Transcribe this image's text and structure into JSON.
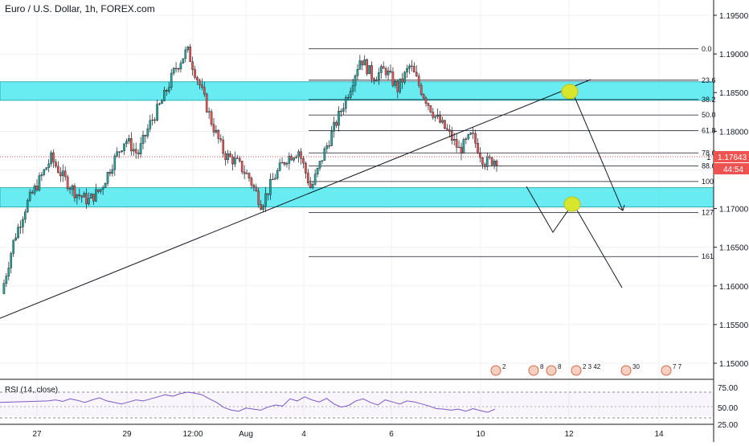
{
  "header": {
    "title": "Euro / U.S. Dollar, 1h, FOREX.com"
  },
  "price_badge": {
    "price": "1.17643",
    "countdown": "44:54",
    "left_glyph": "1"
  },
  "colors": {
    "bull": "#26a69a",
    "bear": "#ef5350",
    "zone": "#4ee9f0",
    "rsi": "#7e57c2",
    "circle": "#d7e62d",
    "grid": "#e0e3eb",
    "badge": "#ef5350"
  },
  "rsi": {
    "title": "RSI (14, close)",
    "levels": [
      "75.00",
      "50.00",
      "25.00"
    ]
  },
  "x_axis": {
    "labels": [
      "27",
      "29",
      "12:00",
      "Aug",
      "4",
      "6",
      "10",
      "12",
      "14"
    ]
  },
  "events": [
    "2",
    "8",
    "8",
    "2 3 42",
    "30",
    "7 7"
  ],
  "chart_data": {
    "type": "candlestick",
    "symbol": "EURUSD",
    "interval": "1h",
    "ylim": [
      1.15,
      1.197
    ],
    "y_ticks": [
      "1.19500",
      "1.19000",
      "1.18500",
      "1.18000",
      "1.17500",
      "1.17000",
      "1.16500",
      "1.16000",
      "1.15500",
      "1.15000"
    ],
    "x_ticks": [
      "27",
      "29",
      "12:00",
      "Aug",
      "4",
      "6",
      "10",
      "12",
      "14"
    ],
    "last_price": 1.17643,
    "price_path": [
      [
        "27",
        1.159
      ],
      [
        "27",
        1.166
      ],
      [
        "27",
        1.1705
      ],
      [
        "27",
        1.1735
      ],
      [
        "27",
        1.1765
      ],
      [
        "28",
        1.174
      ],
      [
        "28",
        1.172
      ],
      [
        "28",
        1.171
      ],
      [
        "29",
        1.1725
      ],
      [
        "29",
        1.176
      ],
      [
        "29",
        1.179
      ],
      [
        "30",
        1.177
      ],
      [
        "30",
        1.181
      ],
      [
        "30",
        1.184
      ],
      [
        "12:00",
        1.188
      ],
      [
        "12:00",
        1.1905
      ],
      [
        "12:00",
        1.186
      ],
      [
        "31",
        1.181
      ],
      [
        "31",
        1.177
      ],
      [
        "31",
        1.176
      ],
      [
        "Aug",
        1.174
      ],
      [
        "Aug",
        1.1705
      ],
      [
        "3",
        1.174
      ],
      [
        "3",
        1.1765
      ],
      [
        "4",
        1.1775
      ],
      [
        "4",
        1.1725
      ],
      [
        "4",
        1.177
      ],
      [
        "5",
        1.181
      ],
      [
        "5",
        1.185
      ],
      [
        "5",
        1.1895
      ],
      [
        "6",
        1.187
      ],
      [
        "6",
        1.188
      ],
      [
        "6",
        1.1855
      ],
      [
        "7",
        1.1885
      ],
      [
        "7",
        1.185
      ],
      [
        "7",
        1.182
      ],
      [
        "9",
        1.18
      ],
      [
        "9",
        1.1775
      ],
      [
        "10",
        1.1795
      ],
      [
        "10",
        1.176
      ],
      [
        "10",
        1.1764
      ]
    ],
    "fibonacci": [
      {
        "level": "0.0",
        "price": 1.19066
      },
      {
        "level": "23.6",
        "price": 1.1866
      },
      {
        "level": "38.2",
        "price": 1.1841
      },
      {
        "level": "50.0",
        "price": 1.1821
      },
      {
        "level": "61.8",
        "price": 1.1801
      },
      {
        "level": "78.6",
        "price": 1.1772
      },
      {
        "level": "88.6",
        "price": 1.1755
      },
      {
        "level": "100",
        "price": 1.1735
      },
      {
        "level": "127",
        "price": 1.1695
      },
      {
        "level": "161",
        "price": 1.1638
      }
    ],
    "zones": [
      {
        "from": 1.184,
        "to": 1.1864
      },
      {
        "from": 1.1702,
        "to": 1.1727
      }
    ],
    "rsi_series": [
      58,
      60,
      57,
      62,
      59,
      55,
      60,
      64,
      58,
      55,
      52,
      56,
      60,
      58,
      62,
      66,
      70,
      67,
      72,
      75,
      73,
      70,
      62,
      55,
      45,
      40,
      38,
      44,
      42,
      40,
      46,
      50,
      48,
      62,
      58,
      66,
      60,
      56,
      63,
      52,
      46,
      49,
      58,
      62,
      55,
      50,
      60,
      56,
      52,
      58,
      56,
      52,
      48,
      43,
      42,
      40,
      42,
      38,
      43,
      39,
      36,
      42
    ]
  }
}
